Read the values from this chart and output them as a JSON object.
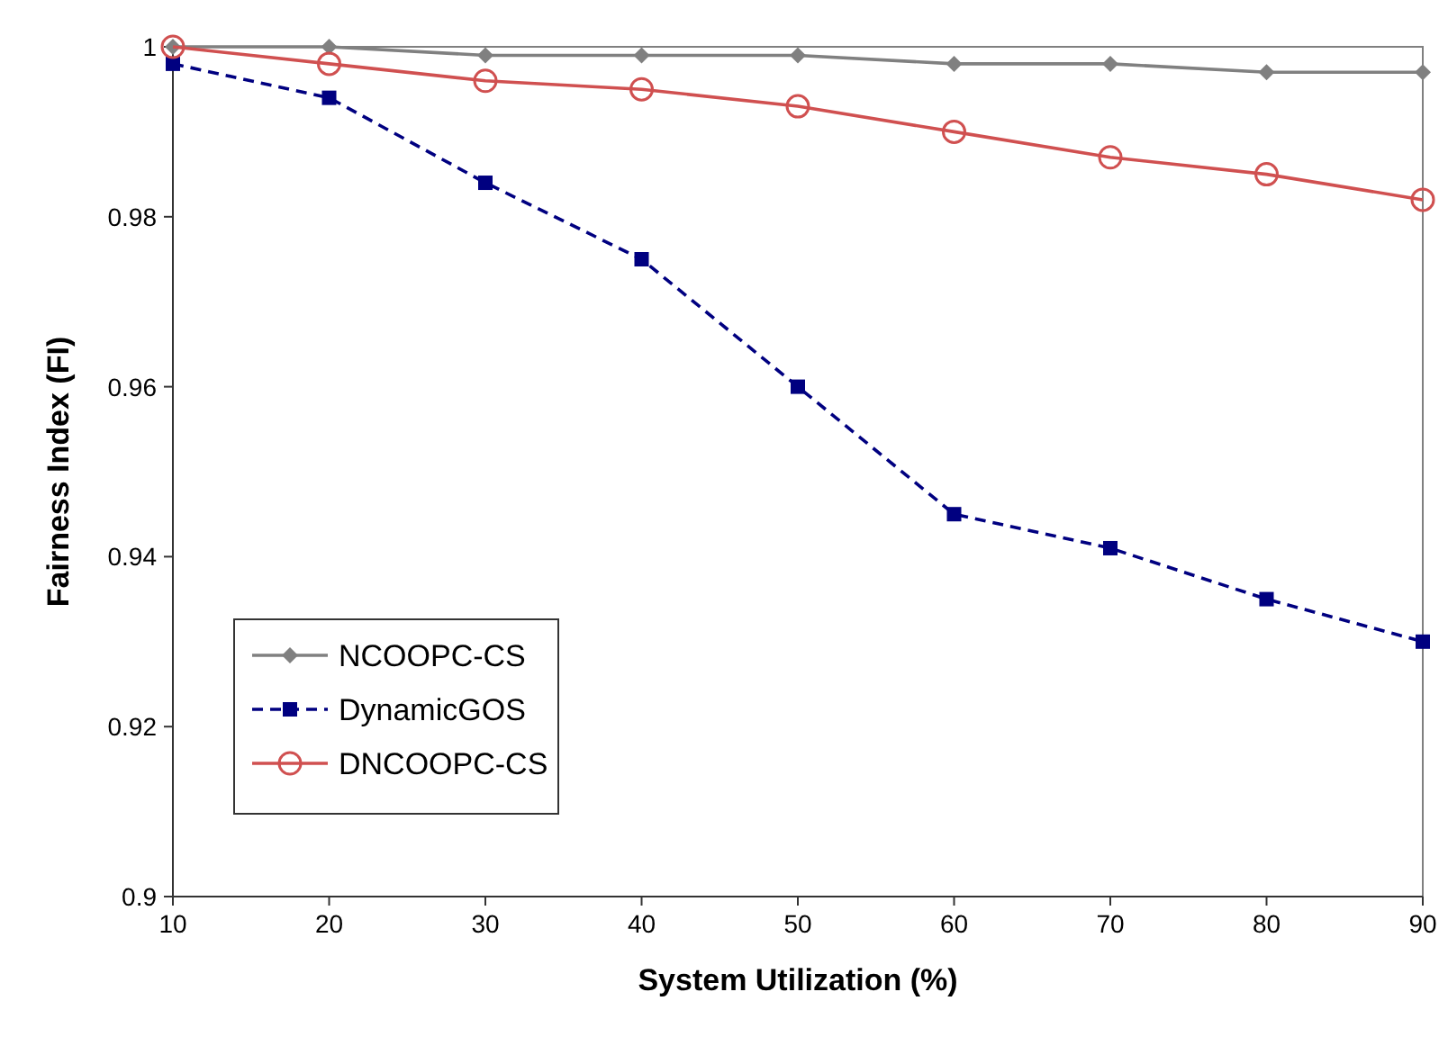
{
  "chart_data": {
    "type": "line",
    "xlabel": "System Utilization (%)",
    "ylabel": "Fairness Index (FI)",
    "x": [
      10,
      20,
      30,
      40,
      50,
      60,
      70,
      80,
      90
    ],
    "xlim": [
      10,
      90
    ],
    "xticks": [
      10,
      20,
      30,
      40,
      50,
      60,
      70,
      80,
      90
    ],
    "ylim": [
      0.9,
      1
    ],
    "yticks": [
      0.9,
      0.92,
      0.94,
      0.96,
      0.98,
      1
    ],
    "grid": false,
    "legend": "bottom left",
    "series": [
      {
        "name": "NCOOPC-CS",
        "color": "#808080",
        "marker": "diamond",
        "line_style": "solid",
        "values": [
          1,
          1,
          0.999,
          0.999,
          0.999,
          0.998,
          0.998,
          0.997,
          0.997
        ]
      },
      {
        "name": "DynamicGOS",
        "color": "#000080",
        "marker": "square",
        "line_style": "dashed",
        "values": [
          0.998,
          0.994,
          0.984,
          0.975,
          0.96,
          0.945,
          0.941,
          0.935,
          0.93
        ]
      },
      {
        "name": "DNCOOPC-CS",
        "color": "#d05050",
        "marker": "circle",
        "line_style": "solid",
        "values": [
          1,
          0.998,
          0.996,
          0.995,
          0.993,
          0.99,
          0.987,
          0.985,
          0.982
        ]
      }
    ]
  }
}
